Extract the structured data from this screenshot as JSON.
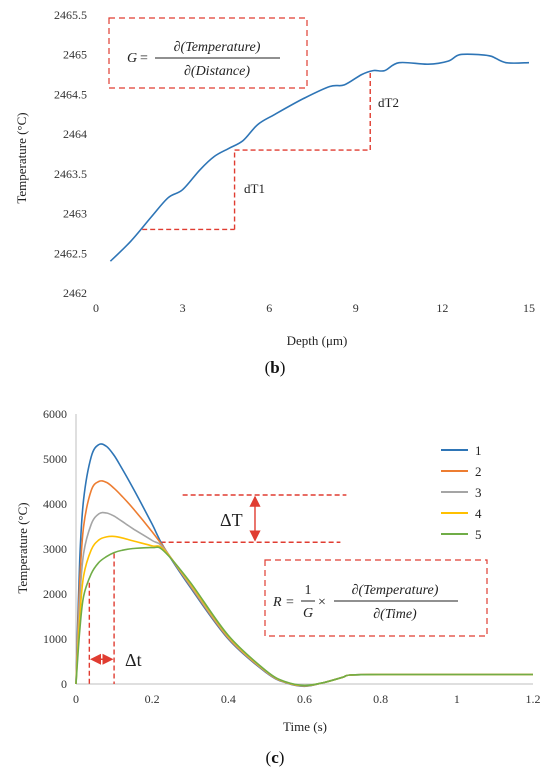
{
  "chart_data": [
    {
      "panel": "b",
      "type": "line",
      "caption_letter": "b",
      "xlabel": "Depth (μm)",
      "ylabel": "Temperature (°C)",
      "xlim": [
        0,
        15
      ],
      "ylim": [
        2462,
        2465.5
      ],
      "xticks": [
        0,
        3,
        6,
        9,
        12,
        15
      ],
      "yticks": [
        2462,
        2462.5,
        2463,
        2463.5,
        2464,
        2464.5,
        2465,
        2465.5
      ],
      "grid": false,
      "color": "#2e75b6",
      "x": [
        0.5,
        1.2,
        1.9,
        2.5,
        3.0,
        3.6,
        4.1,
        4.6,
        5.1,
        5.6,
        6.2,
        7.2,
        8.1,
        8.6,
        9.2,
        9.6,
        10.0,
        10.5,
        11.5,
        12.2,
        12.6,
        13.3,
        13.7,
        14.2,
        15.0
      ],
      "y": [
        2462.4,
        2462.65,
        2462.95,
        2463.2,
        2463.3,
        2463.55,
        2463.72,
        2463.82,
        2463.92,
        2464.12,
        2464.25,
        2464.45,
        2464.6,
        2464.62,
        2464.75,
        2464.8,
        2464.8,
        2464.9,
        2464.88,
        2464.92,
        2465.0,
        2465.0,
        2464.98,
        2464.9,
        2464.9
      ],
      "annotations": {
        "equation": {
          "lhs": "G",
          "numerator": "∂(Temperature)",
          "denominator": "∂(Distance)"
        },
        "step1": {
          "label": "dT1",
          "x_start": 1.6,
          "x_end": 4.8,
          "y_low": 2462.8,
          "y_high": 2463.8
        },
        "step2": {
          "label": "dT2",
          "x_start": 4.8,
          "x_end": 9.5,
          "y_low": 2463.8,
          "y_high": 2464.8
        }
      }
    },
    {
      "panel": "c",
      "type": "line",
      "caption_letter": "c",
      "xlabel": "Time (s)",
      "ylabel": "Temperature (°C)",
      "xlim": [
        0,
        1.2
      ],
      "ylim": [
        0,
        6000
      ],
      "xticks": [
        0,
        0.2,
        0.4,
        0.6,
        0.8,
        1,
        1.2
      ],
      "yticks": [
        0,
        1000,
        2000,
        3000,
        4000,
        5000,
        6000
      ],
      "grid": false,
      "legend_position": "top-right",
      "series": [
        {
          "name": "1",
          "color": "#2e75b6",
          "x": [
            0,
            0.01,
            0.02,
            0.04,
            0.06,
            0.08,
            0.1,
            0.12,
            0.15,
            0.2,
            0.23,
            0.3,
            0.4,
            0.5,
            0.55,
            0.6,
            0.65,
            0.7,
            0.72,
            0.8,
            0.9,
            1.0,
            1.1,
            1.2
          ],
          "y": [
            0,
            2800,
            4100,
            5050,
            5320,
            5280,
            5080,
            4800,
            4350,
            3550,
            3050,
            2150,
            1000,
            250,
            30,
            -50,
            30,
            150,
            200,
            210,
            210,
            210,
            210,
            210
          ]
        },
        {
          "name": "2",
          "color": "#ed7d31",
          "x": [
            0,
            0.01,
            0.02,
            0.04,
            0.06,
            0.08,
            0.1,
            0.12,
            0.15,
            0.2,
            0.23,
            0.3,
            0.4,
            0.5,
            0.55,
            0.6,
            0.65,
            0.7,
            0.72,
            0.8,
            0.9,
            1.0,
            1.1,
            1.2
          ],
          "y": [
            0,
            2300,
            3500,
            4300,
            4500,
            4480,
            4350,
            4180,
            3900,
            3380,
            3040,
            2180,
            1020,
            260,
            35,
            -45,
            30,
            150,
            200,
            210,
            210,
            210,
            210,
            210
          ]
        },
        {
          "name": "3",
          "color": "#a5a5a5",
          "x": [
            0,
            0.01,
            0.02,
            0.04,
            0.06,
            0.08,
            0.1,
            0.12,
            0.15,
            0.2,
            0.23,
            0.3,
            0.4,
            0.5,
            0.55,
            0.6,
            0.65,
            0.7,
            0.72,
            0.8,
            0.9,
            1.0,
            1.1,
            1.2
          ],
          "y": [
            0,
            1900,
            2900,
            3550,
            3780,
            3800,
            3730,
            3620,
            3450,
            3190,
            3020,
            2200,
            1040,
            270,
            40,
            -40,
            30,
            150,
            200,
            210,
            210,
            210,
            210,
            210
          ]
        },
        {
          "name": "4",
          "color": "#ffc000",
          "x": [
            0,
            0.01,
            0.02,
            0.04,
            0.06,
            0.08,
            0.1,
            0.12,
            0.15,
            0.2,
            0.23,
            0.3,
            0.4,
            0.5,
            0.55,
            0.6,
            0.65,
            0.7,
            0.72,
            0.8,
            0.9,
            1.0,
            1.1,
            1.2
          ],
          "y": [
            0,
            1500,
            2400,
            2980,
            3200,
            3270,
            3280,
            3250,
            3180,
            3070,
            2990,
            2230,
            1060,
            280,
            45,
            -35,
            30,
            150,
            200,
            210,
            210,
            210,
            210,
            210
          ]
        },
        {
          "name": "5",
          "color": "#70ad47",
          "x": [
            0,
            0.01,
            0.02,
            0.04,
            0.06,
            0.08,
            0.1,
            0.12,
            0.15,
            0.2,
            0.23,
            0.3,
            0.4,
            0.5,
            0.55,
            0.6,
            0.65,
            0.7,
            0.72,
            0.8,
            0.9,
            1.0,
            1.1,
            1.2
          ],
          "y": [
            0,
            1200,
            1950,
            2450,
            2700,
            2830,
            2920,
            2970,
            3010,
            3030,
            2960,
            2260,
            1080,
            290,
            50,
            -30,
            30,
            150,
            200,
            210,
            210,
            210,
            210,
            210
          ]
        }
      ],
      "annotations": {
        "delta_T": {
          "label": "ΔT",
          "y_high": 4200,
          "y_low": 3150,
          "x_start": 0.28,
          "x_end": 0.71
        },
        "delta_t": {
          "label": "Δt",
          "x_start": 0.035,
          "x_end": 0.1,
          "y_top": 2900
        },
        "equation": {
          "lhs": "R",
          "frac_num": "1",
          "frac_den": "G",
          "times": "×",
          "numerator": "∂(Temperature)",
          "denominator": "∂(Time)"
        }
      }
    }
  ]
}
